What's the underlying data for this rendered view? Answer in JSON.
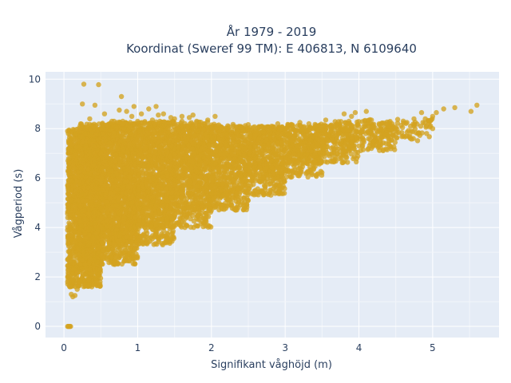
{
  "chart_data": {
    "type": "scatter",
    "title_lines": [
      "År 1979 - 2019",
      "Koordinat (Sweref 99 TM): E 406813, N 6109640"
    ],
    "xlabel": "Signifikant våghöjd (m)",
    "ylabel": "Vågperiod (s)",
    "xlim": [
      -0.25,
      5.9
    ],
    "ylim": [
      -0.45,
      10.3
    ],
    "xticks": [
      0,
      1,
      2,
      3,
      4,
      5
    ],
    "yticks": [
      0,
      2,
      4,
      6,
      8,
      10
    ],
    "xtick_labels": [
      "0",
      "1",
      "2",
      "3",
      "4",
      "5"
    ],
    "ytick_labels": [
      "0",
      "2",
      "4",
      "6",
      "8",
      "10"
    ],
    "grid": true,
    "marker_color": "#d4a320",
    "plot_bg": "#e5ecf6",
    "series": [
      {
        "points": [
          [
            0.27,
            9.8
          ],
          [
            0.47,
            9.78
          ],
          [
            0.42,
            8.95
          ],
          [
            0.78,
            9.3
          ],
          [
            0.92,
            8.5
          ],
          [
            1.28,
            8.55
          ],
          [
            1.42,
            8.25
          ],
          [
            2.0,
            8.15
          ],
          [
            2.4,
            8.05
          ],
          [
            2.9,
            8.2
          ],
          [
            3.2,
            8.25
          ],
          [
            3.55,
            8.35
          ],
          [
            3.8,
            8.6
          ],
          [
            3.9,
            8.5
          ],
          [
            3.95,
            8.65
          ],
          [
            4.1,
            8.7
          ],
          [
            4.2,
            8.05
          ],
          [
            4.45,
            8.2
          ],
          [
            4.7,
            8.1
          ],
          [
            4.9,
            8.4
          ],
          [
            5.0,
            8.5
          ],
          [
            5.05,
            8.65
          ],
          [
            5.15,
            8.8
          ],
          [
            5.3,
            8.85
          ],
          [
            5.52,
            8.7
          ],
          [
            5.6,
            8.95
          ],
          [
            4.85,
            8.65
          ],
          [
            4.95,
            8.3
          ],
          [
            4.65,
            8.25
          ],
          [
            3.35,
            7.5
          ],
          [
            0.05,
            0.0
          ],
          [
            0.06,
            0.0
          ],
          [
            0.07,
            0.0
          ],
          [
            0.08,
            0.0
          ],
          [
            0.09,
            0.0
          ],
          [
            0.08,
            1.6
          ],
          [
            0.1,
            1.3
          ],
          [
            0.12,
            1.2
          ],
          [
            0.15,
            1.25
          ],
          [
            0.05,
            1.8
          ],
          [
            0.06,
            2.1
          ],
          [
            0.07,
            2.4
          ],
          [
            0.05,
            2.7
          ],
          [
            0.08,
            3.0
          ],
          [
            0.06,
            3.4
          ],
          [
            0.05,
            3.9
          ],
          [
            0.08,
            4.4
          ],
          [
            0.06,
            4.9
          ],
          [
            0.07,
            5.3
          ],
          [
            0.05,
            5.7
          ],
          [
            0.09,
            6.2
          ],
          [
            0.07,
            6.6
          ],
          [
            0.06,
            7.0
          ],
          [
            0.08,
            7.4
          ],
          [
            0.06,
            7.8
          ],
          [
            0.05,
            7.9
          ],
          [
            0.1,
            7.6
          ],
          [
            0.12,
            7.1
          ],
          [
            0.14,
            6.4
          ],
          [
            0.11,
            5.9
          ],
          [
            0.1,
            5.1
          ],
          [
            0.12,
            4.5
          ],
          [
            0.09,
            4.0
          ],
          [
            0.11,
            3.5
          ],
          [
            0.1,
            2.9
          ],
          [
            0.13,
            2.3
          ],
          [
            0.12,
            1.9
          ],
          [
            0.18,
            1.5
          ],
          [
            0.2,
            1.8
          ],
          [
            0.22,
            2.2
          ],
          [
            0.25,
            2.0
          ],
          [
            0.3,
            2.4
          ],
          [
            0.35,
            2.3
          ],
          [
            0.4,
            2.7
          ],
          [
            0.45,
            2.6
          ],
          [
            0.5,
            2.9
          ],
          [
            0.6,
            3.1
          ],
          [
            0.7,
            3.3
          ],
          [
            0.8,
            3.5
          ],
          [
            0.9,
            3.6
          ],
          [
            1.0,
            3.8
          ],
          [
            1.1,
            4.0
          ],
          [
            1.25,
            4.1
          ],
          [
            1.4,
            4.35
          ],
          [
            1.55,
            4.6
          ],
          [
            1.7,
            4.8
          ],
          [
            1.85,
            5.0
          ],
          [
            2.0,
            5.1
          ],
          [
            2.2,
            5.4
          ],
          [
            2.4,
            5.6
          ],
          [
            2.6,
            5.9
          ],
          [
            2.8,
            6.1
          ],
          [
            3.0,
            6.3
          ],
          [
            3.2,
            6.5
          ],
          [
            3.4,
            6.7
          ],
          [
            3.6,
            6.9
          ],
          [
            3.8,
            7.1
          ],
          [
            4.0,
            7.3
          ],
          [
            4.2,
            7.5
          ],
          [
            4.4,
            7.6
          ],
          [
            4.6,
            7.7
          ],
          [
            4.8,
            7.8
          ],
          [
            5.0,
            8.0
          ],
          [
            4.5,
            7.9
          ],
          [
            4.3,
            8.0
          ],
          [
            0.2,
            8.0
          ],
          [
            0.3,
            8.05
          ],
          [
            0.4,
            8.1
          ],
          [
            0.5,
            8.0
          ],
          [
            0.6,
            8.15
          ],
          [
            0.7,
            8.1
          ],
          [
            0.8,
            8.2
          ],
          [
            0.9,
            8.25
          ],
          [
            1.0,
            8.3
          ],
          [
            1.1,
            8.2
          ],
          [
            1.2,
            8.35
          ],
          [
            1.3,
            8.3
          ],
          [
            1.5,
            8.4
          ],
          [
            1.6,
            8.3
          ],
          [
            1.7,
            8.45
          ],
          [
            1.8,
            8.3
          ],
          [
            1.9,
            8.2
          ],
          [
            2.1,
            8.15
          ],
          [
            2.2,
            8.0
          ],
          [
            2.3,
            8.1
          ],
          [
            2.5,
            8.0
          ],
          [
            2.6,
            7.9
          ],
          [
            2.7,
            8.05
          ],
          [
            2.8,
            7.95
          ],
          [
            3.0,
            7.9
          ],
          [
            3.1,
            8.0
          ],
          [
            3.3,
            8.05
          ],
          [
            3.5,
            7.95
          ],
          [
            3.7,
            8.05
          ],
          [
            3.9,
            8.1
          ],
          [
            0.35,
            8.4
          ],
          [
            0.55,
            8.6
          ],
          [
            0.65,
            8.3
          ],
          [
            0.85,
            8.7
          ],
          [
            1.05,
            8.6
          ],
          [
            1.15,
            8.8
          ],
          [
            1.35,
            8.6
          ],
          [
            1.6,
            8.5
          ],
          [
            1.75,
            8.55
          ],
          [
            2.05,
            8.5
          ],
          [
            0.95,
            8.9
          ],
          [
            1.25,
            8.9
          ],
          [
            0.75,
            8.75
          ],
          [
            1.45,
            8.45
          ],
          [
            1.95,
            8.35
          ],
          [
            0.25,
            9.0
          ]
        ],
        "bands": [
          {
            "x": [
              0.05,
              0.5
            ],
            "y": [
              1.6,
              8.0
            ],
            "n": 1400
          },
          {
            "x": [
              0.2,
              1.0
            ],
            "y": [
              2.5,
              8.2
            ],
            "n": 1500
          },
          {
            "x": [
              0.5,
              1.5
            ],
            "y": [
              3.3,
              8.3
            ],
            "n": 1300
          },
          {
            "x": [
              1.0,
              2.0
            ],
            "y": [
              4.0,
              8.3
            ],
            "n": 1000
          },
          {
            "x": [
              1.5,
              2.5
            ],
            "y": [
              4.7,
              8.2
            ],
            "n": 800
          },
          {
            "x": [
              2.0,
              3.0
            ],
            "y": [
              5.3,
              8.1
            ],
            "n": 600
          },
          {
            "x": [
              2.5,
              3.5
            ],
            "y": [
              6.0,
              8.1
            ],
            "n": 450
          },
          {
            "x": [
              3.0,
              4.0
            ],
            "y": [
              6.6,
              8.2
            ],
            "n": 320
          },
          {
            "x": [
              3.5,
              4.5
            ],
            "y": [
              7.1,
              8.3
            ],
            "n": 200
          },
          {
            "x": [
              4.0,
              5.0
            ],
            "y": [
              7.5,
              8.4
            ],
            "n": 110
          }
        ]
      }
    ]
  }
}
